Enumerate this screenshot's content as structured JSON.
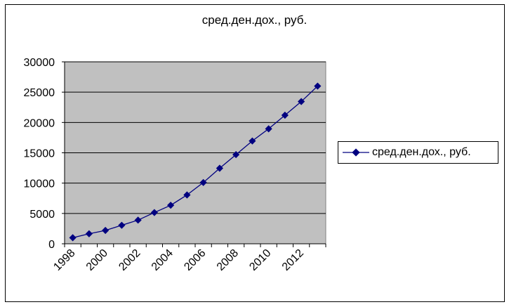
{
  "chart_data": {
    "type": "line",
    "title": "сред.ден.дох., руб.",
    "xlabel": "",
    "ylabel": "",
    "ylim": [
      0,
      30000
    ],
    "yticks": [
      "0",
      "5000",
      "10000",
      "15000",
      "20000",
      "25000",
      "30000"
    ],
    "x_tick_labels": [
      "1998",
      "2000",
      "2002",
      "2004",
      "2006",
      "2008",
      "2010",
      "2012"
    ],
    "x": [
      1998,
      1999,
      2000,
      2001,
      2002,
      2003,
      2004,
      2005,
      2006,
      2007,
      2008,
      2009,
      2010,
      2011,
      2012,
      2013
    ],
    "series": [
      {
        "name": "сред.ден.дох., руб.",
        "values": [
          1000,
          1650,
          2200,
          3050,
          3900,
          5150,
          6350,
          8050,
          10100,
          12450,
          14700,
          16950,
          18950,
          21200,
          23450,
          26000
        ],
        "color": "#000080"
      }
    ],
    "grid": "horizontal",
    "plot_background": "#c0c0c0",
    "legend_position": "right"
  }
}
